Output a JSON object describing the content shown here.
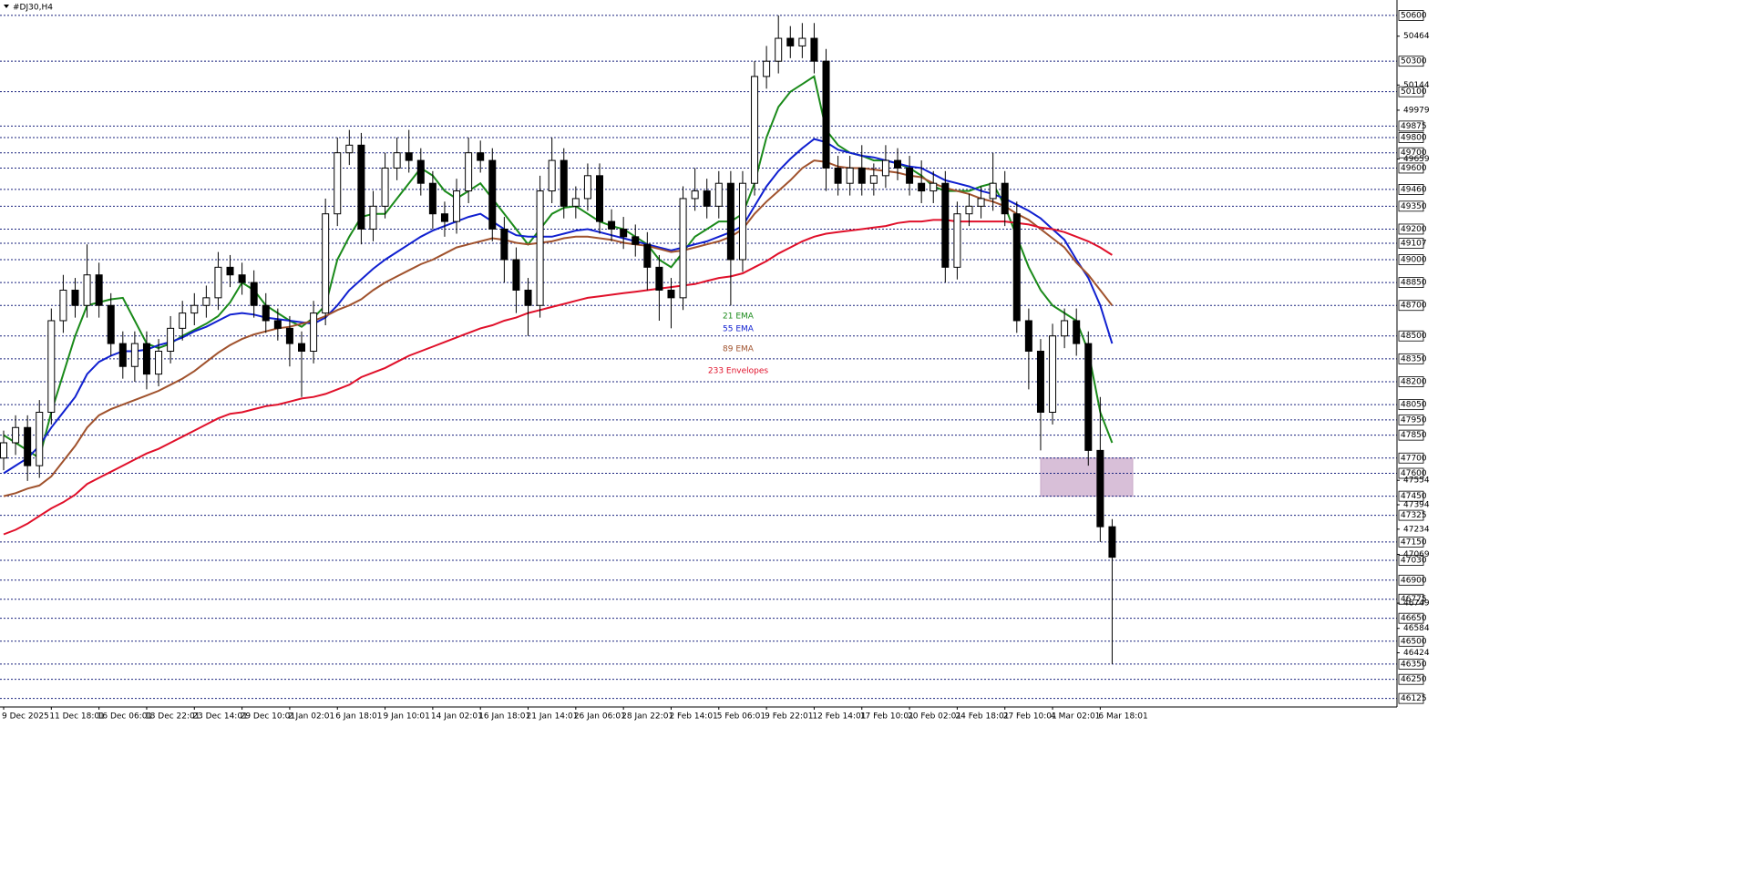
{
  "chart_data": {
    "type": "candlestick",
    "title": "#DJ30,H4",
    "categories": [
      "9 Dec 2025",
      null,
      null,
      null,
      "11 Dec 18:01",
      null,
      null,
      null,
      "16 Dec 06:01",
      null,
      null,
      null,
      "18 Dec 22:01",
      null,
      null,
      null,
      "23 Dec 14:01",
      null,
      null,
      null,
      "29 Dec 10:01",
      null,
      null,
      null,
      "2 Jan 02:01",
      null,
      null,
      null,
      "6 Jan 18:01",
      null,
      null,
      null,
      "9 Jan 10:01",
      null,
      null,
      null,
      "14 Jan 02:01",
      null,
      null,
      null,
      "16 Jan 18:01",
      null,
      null,
      null,
      "21 Jan 14:01",
      null,
      null,
      null,
      "26 Jan 06:01",
      null,
      null,
      null,
      "28 Jan 22:01",
      null,
      null,
      null,
      "2 Feb 14:01",
      null,
      null,
      null,
      "5 Feb 06:01",
      null,
      null,
      null,
      "9 Feb 22:01",
      null,
      null,
      null,
      "12 Feb 14:01",
      null,
      null,
      null,
      "17 Feb 10:01",
      null,
      null,
      null,
      "20 Feb 02:01",
      null,
      null,
      null,
      "24 Feb 18:01",
      null,
      null,
      null,
      "27 Feb 10:01",
      null,
      null,
      null,
      "4 Mar 02:01",
      null,
      null,
      null,
      "6 Mar 18:01",
      null
    ],
    "open": [
      47700,
      47800,
      47900,
      47650,
      48000,
      48600,
      48800,
      48700,
      48900,
      48700,
      48450,
      48300,
      48450,
      48250,
      48400,
      48550,
      48650,
      48700,
      48750,
      48950,
      48900,
      48850,
      48700,
      48600,
      48550,
      48450,
      48400,
      48650,
      49300,
      49700,
      49750,
      49200,
      49350,
      49600,
      49700,
      49650,
      49500,
      49300,
      49250,
      49450,
      49700,
      49650,
      49200,
      49000,
      48800,
      48700,
      49450,
      49650,
      49350,
      49400,
      49550,
      49250,
      49200,
      49150,
      49100,
      48950,
      48800,
      48750,
      49400,
      49450,
      49350,
      49500,
      49000,
      49500,
      50200,
      50300,
      50450,
      50400,
      50450,
      50300,
      49600,
      49500,
      49600,
      49500,
      49550,
      49650,
      49600,
      49500,
      49450,
      49500,
      48950,
      49300,
      49350,
      49400,
      49500,
      49300,
      48600,
      48400,
      48000,
      48500,
      48600,
      48450,
      47750,
      47250
    ],
    "high": [
      47880,
      47980,
      47980,
      48080,
      48680,
      48900,
      48880,
      49100,
      48980,
      48780,
      48530,
      48530,
      48530,
      48480,
      48630,
      48730,
      48780,
      48830,
      49050,
      49030,
      48980,
      48930,
      48780,
      48680,
      48630,
      48530,
      48730,
      49400,
      49800,
      49850,
      49830,
      49450,
      49700,
      49800,
      49850,
      49730,
      49580,
      49380,
      49530,
      49800,
      49780,
      49730,
      49280,
      49080,
      48880,
      49550,
      49800,
      49730,
      49480,
      49630,
      49630,
      49330,
      49280,
      49230,
      49180,
      49030,
      48880,
      49480,
      49600,
      49530,
      49580,
      49580,
      49580,
      50300,
      50400,
      50600,
      50530,
      50550,
      50550,
      50380,
      49680,
      49680,
      49750,
      49630,
      49750,
      49730,
      49680,
      49650,
      49580,
      49580,
      49380,
      49430,
      49480,
      49700,
      49580,
      49380,
      48680,
      48480,
      48580,
      48680,
      48680,
      48530,
      48100,
      47300
    ],
    "low": [
      47620,
      47720,
      47550,
      47570,
      47920,
      48520,
      48620,
      48620,
      48620,
      48370,
      48220,
      48200,
      48150,
      48170,
      48320,
      48470,
      48570,
      48620,
      48670,
      48820,
      48770,
      48620,
      48520,
      48470,
      48300,
      48100,
      48320,
      48570,
      49220,
      49620,
      49100,
      49120,
      49270,
      49520,
      49570,
      49420,
      49200,
      49150,
      49170,
      49370,
      49570,
      49120,
      48850,
      48650,
      48500,
      48620,
      49370,
      49270,
      49270,
      49320,
      49170,
      49120,
      49070,
      49020,
      48800,
      48600,
      48550,
      48670,
      49320,
      49270,
      49270,
      48700,
      48920,
      49420,
      50120,
      50220,
      50320,
      50320,
      50220,
      49450,
      49420,
      49420,
      49420,
      49420,
      49470,
      49520,
      49420,
      49370,
      49370,
      48850,
      48870,
      49220,
      49270,
      49320,
      49220,
      48520,
      48150,
      47750,
      47920,
      48420,
      48370,
      47650,
      47150,
      46350
    ],
    "close": [
      47800,
      47900,
      47650,
      48000,
      48600,
      48800,
      48700,
      48900,
      48700,
      48450,
      48300,
      48450,
      48250,
      48400,
      48550,
      48650,
      48700,
      48750,
      48950,
      48900,
      48850,
      48700,
      48600,
      48550,
      48450,
      48400,
      48650,
      49300,
      49700,
      49750,
      49200,
      49350,
      49600,
      49700,
      49650,
      49500,
      49300,
      49250,
      49450,
      49700,
      49650,
      49200,
      49000,
      48800,
      48700,
      49450,
      49650,
      49350,
      49400,
      49550,
      49250,
      49200,
      49150,
      49100,
      48950,
      48800,
      48750,
      49400,
      49450,
      49350,
      49500,
      49000,
      49500,
      50200,
      50300,
      50450,
      50400,
      50450,
      50300,
      49600,
      49500,
      49600,
      49500,
      49550,
      49650,
      49600,
      49500,
      49450,
      49500,
      48950,
      49300,
      49350,
      49400,
      49500,
      49300,
      48600,
      48400,
      48000,
      48500,
      48600,
      48450,
      47750,
      47250,
      47050
    ],
    "up_color": "#ffffff",
    "down_color": "#000000",
    "series": [
      {
        "name": "21 EMA",
        "color": "#1a8a1a",
        "values": [
          47850,
          47800,
          47750,
          47700,
          48000,
          48250,
          48500,
          48700,
          48720,
          48740,
          48750,
          48600,
          48450,
          48420,
          48450,
          48500,
          48540,
          48580,
          48630,
          48720,
          48850,
          48800,
          48700,
          48650,
          48600,
          48560,
          48620,
          48700,
          49000,
          49150,
          49280,
          49300,
          49300,
          49400,
          49500,
          49600,
          49550,
          49450,
          49400,
          49450,
          49500,
          49400,
          49300,
          49200,
          49100,
          49200,
          49300,
          49340,
          49350,
          49300,
          49250,
          49220,
          49200,
          49150,
          49100,
          49000,
          48950,
          49050,
          49150,
          49200,
          49250,
          49250,
          49300,
          49500,
          49800,
          50000,
          50100,
          50150,
          50200,
          49850,
          49750,
          49700,
          49680,
          49650,
          49650,
          49630,
          49600,
          49550,
          49480,
          49450,
          49450,
          49450,
          49480,
          49500,
          49350,
          49150,
          48950,
          48800,
          48700,
          48650,
          48600,
          48400,
          48000,
          47800
        ]
      },
      {
        "name": "55 EMA",
        "color": "#1020d0",
        "values": [
          47600,
          47650,
          47700,
          47780,
          47900,
          48000,
          48100,
          48250,
          48330,
          48370,
          48400,
          48400,
          48410,
          48440,
          48460,
          48490,
          48530,
          48560,
          48600,
          48640,
          48650,
          48640,
          48620,
          48610,
          48600,
          48590,
          48580,
          48620,
          48700,
          48800,
          48870,
          48940,
          49000,
          49050,
          49100,
          49150,
          49190,
          49220,
          49250,
          49280,
          49300,
          49250,
          49200,
          49160,
          49150,
          49150,
          49150,
          49170,
          49190,
          49200,
          49180,
          49160,
          49140,
          49120,
          49100,
          49080,
          49060,
          49080,
          49100,
          49120,
          49150,
          49180,
          49220,
          49350,
          49480,
          49580,
          49660,
          49730,
          49790,
          49770,
          49720,
          49700,
          49680,
          49670,
          49650,
          49630,
          49610,
          49600,
          49560,
          49520,
          49500,
          49480,
          49450,
          49430,
          49400,
          49360,
          49320,
          49270,
          49200,
          49130,
          49000,
          48880,
          48700,
          48450
        ]
      },
      {
        "name": "89 EMA",
        "color": "#a0522d",
        "values": [
          47450,
          47470,
          47500,
          47520,
          47580,
          47680,
          47780,
          47900,
          47980,
          48020,
          48050,
          48080,
          48110,
          48140,
          48180,
          48220,
          48270,
          48330,
          48390,
          48440,
          48480,
          48510,
          48530,
          48550,
          48560,
          48580,
          48600,
          48630,
          48670,
          48700,
          48740,
          48800,
          48850,
          48890,
          48930,
          48970,
          49000,
          49040,
          49080,
          49100,
          49120,
          49140,
          49130,
          49110,
          49100,
          49110,
          49120,
          49140,
          49150,
          49150,
          49140,
          49130,
          49110,
          49100,
          49090,
          49070,
          49050,
          49060,
          49080,
          49100,
          49120,
          49150,
          49200,
          49300,
          49380,
          49450,
          49520,
          49600,
          49650,
          49640,
          49610,
          49600,
          49600,
          49590,
          49580,
          49570,
          49550,
          49540,
          49500,
          49470,
          49450,
          49430,
          49400,
          49380,
          49350,
          49300,
          49260,
          49200,
          49140,
          49080,
          48980,
          48900,
          48800,
          48700
        ]
      },
      {
        "name": "233 Envelopes",
        "color": "#e0102a",
        "values": [
          47200,
          47230,
          47270,
          47320,
          47370,
          47410,
          47460,
          47530,
          47570,
          47610,
          47650,
          47690,
          47730,
          47760,
          47800,
          47840,
          47880,
          47920,
          47960,
          47990,
          48000,
          48020,
          48040,
          48050,
          48070,
          48090,
          48100,
          48120,
          48150,
          48180,
          48230,
          48260,
          48290,
          48330,
          48370,
          48400,
          48430,
          48460,
          48490,
          48520,
          48550,
          48570,
          48600,
          48620,
          48650,
          48670,
          48690,
          48710,
          48730,
          48750,
          48760,
          48770,
          48780,
          48790,
          48800,
          48810,
          48820,
          48830,
          48840,
          48860,
          48880,
          48890,
          48910,
          48950,
          48990,
          49040,
          49080,
          49120,
          49150,
          49170,
          49180,
          49190,
          49200,
          49210,
          49220,
          49240,
          49250,
          49250,
          49260,
          49260,
          49250,
          49250,
          49250,
          49250,
          49250,
          49240,
          49230,
          49210,
          49200,
          49180,
          49150,
          49120,
          49080,
          49030
        ]
      }
    ],
    "zone": {
      "from": 47450,
      "to": 47700,
      "color": "#d8bfd8"
    },
    "ylim": [
      46069,
      50701
    ],
    "levels": [
      50600,
      50300,
      50100,
      49875,
      49800,
      49700,
      49600,
      49460,
      49350,
      49200,
      49107,
      49000,
      48850,
      48700,
      48500,
      48350,
      48200,
      48050,
      47950,
      47850,
      47700,
      47600,
      47450,
      47325,
      47150,
      47030,
      46900,
      46775,
      46650,
      46500,
      46350,
      46250,
      46125
    ],
    "yticks": [
      50464,
      50144,
      49979,
      49659,
      47554,
      47394,
      47234,
      47069,
      46749,
      46584,
      46424
    ]
  }
}
